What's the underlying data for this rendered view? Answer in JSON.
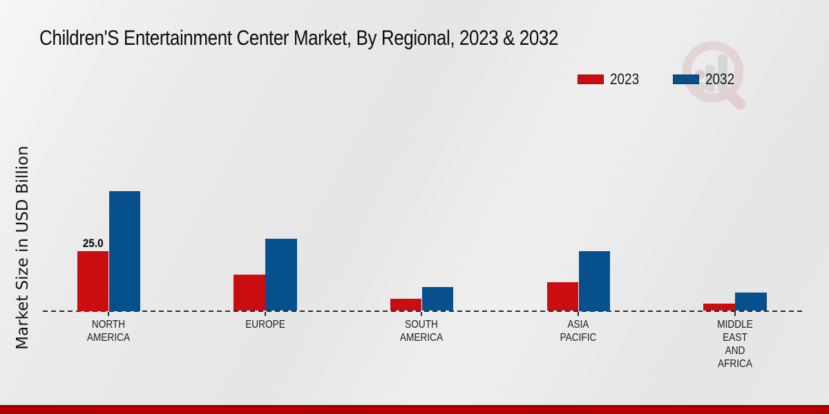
{
  "title": "Children'S Entertainment Center Market, By Regional, 2023 & 2032",
  "y_axis_label": "Market Size in USD Billion",
  "legend": [
    {
      "label": "2023",
      "color": "#c90d10"
    },
    {
      "label": "2032",
      "color": "#07508e"
    }
  ],
  "colors": {
    "series_2023": "#c90d10",
    "series_2032": "#07508e",
    "bottom_strip": "#b40000",
    "axis": "#2b2b2b",
    "background": "#e9e9e9"
  },
  "chart_data": {
    "type": "bar",
    "title": "Children'S Entertainment Center Market, By Regional, 2023 & 2032",
    "xlabel": "",
    "ylabel": "Market Size in USD Billion",
    "categories": [
      "NORTH AMERICA",
      "EUROPE",
      "SOUTH AMERICA",
      "ASIA PACIFIC",
      "MIDDLE EAST AND AFRICA"
    ],
    "series": [
      {
        "name": "2023",
        "color": "#c90d10",
        "values": [
          25.0,
          15.0,
          5.0,
          12.0,
          3.0
        ]
      },
      {
        "name": "2032",
        "color": "#07508e",
        "values": [
          50.0,
          30.0,
          10.0,
          25.0,
          7.5
        ]
      }
    ],
    "value_labels": [
      [
        "25.0",
        "",
        "",
        "",
        ""
      ],
      [
        "",
        "",
        "",
        "",
        ""
      ]
    ],
    "ylim": [
      0,
      55
    ],
    "grid": false,
    "legend_position": "top-right",
    "baseline_style": "dashed"
  },
  "watermark": {
    "name": "magnifier-bar-chart-logo"
  }
}
